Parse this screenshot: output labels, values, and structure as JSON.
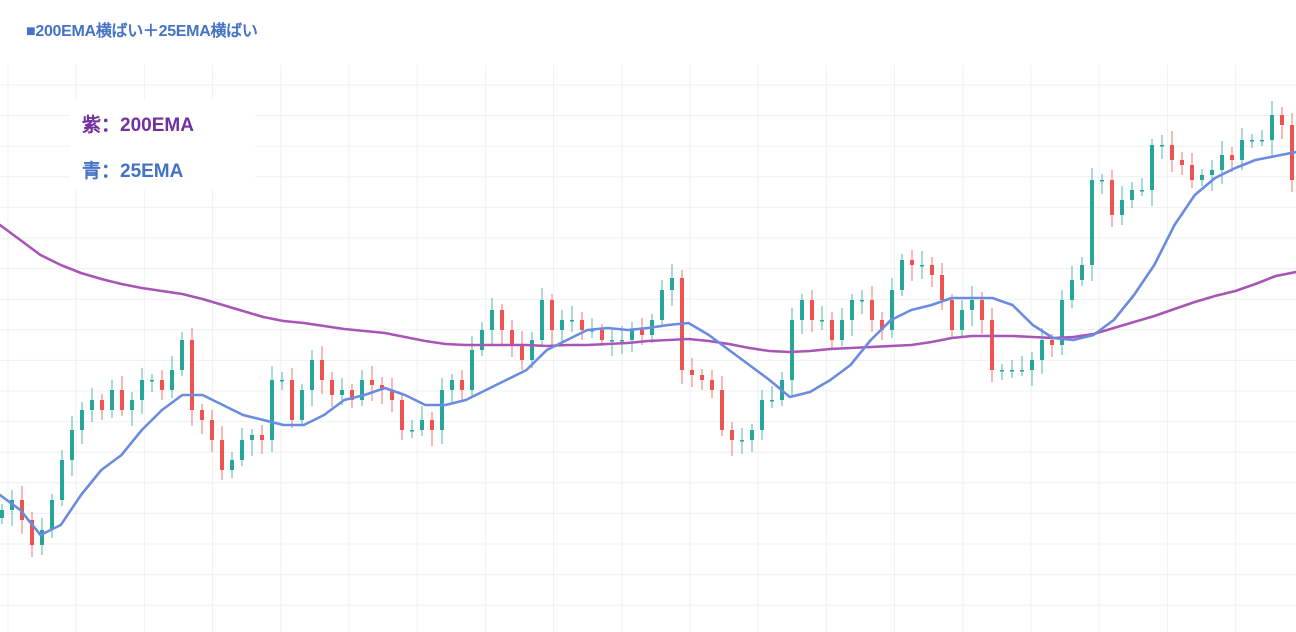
{
  "title": "■200EMA横ばい＋25EMA横ばい",
  "legend": {
    "ema200_label": "紫：200EMA",
    "ema25_label": "青：25EMA"
  },
  "colors": {
    "title": "#4472c4",
    "ema200": "#a855b5",
    "ema25": "#6b8be0",
    "up": "#26a69a",
    "down": "#ef5350",
    "grid": "#f0f0f0"
  },
  "chart_data": {
    "type": "line",
    "subtype": "candlestick-with-ema",
    "title": "■200EMA横ばい＋25EMA横ばい",
    "grid": true,
    "ylim": [
      34,
      316
    ],
    "closes": [
      95,
      100,
      90,
      77.5,
      85,
      100,
      120,
      135,
      145,
      150,
      145,
      155,
      145,
      150,
      160,
      160,
      155,
      165,
      180,
      145,
      140,
      130,
      115,
      120,
      130,
      132.5,
      130,
      160,
      160,
      140,
      155,
      170,
      160,
      152.5,
      155,
      150,
      160,
      157.5,
      155,
      150,
      135,
      135,
      140,
      135,
      155,
      160,
      155,
      175,
      185,
      195,
      185,
      177.5,
      170,
      180,
      200,
      185,
      190,
      190,
      185,
      185,
      180,
      180,
      180,
      185,
      182.5,
      190,
      205,
      211,
      165,
      162.5,
      160,
      155,
      135,
      130,
      130,
      135,
      150,
      150,
      160,
      190,
      200,
      190,
      190,
      180,
      190,
      200,
      200,
      190,
      185,
      205,
      220,
      217.5,
      217.5,
      212.5,
      200,
      185,
      195,
      200,
      190,
      165,
      165,
      165,
      165,
      170,
      180,
      177.5,
      200,
      210,
      217.5,
      260,
      260,
      242.5,
      250,
      255,
      255,
      277.5,
      277.5,
      270,
      267.5,
      260,
      262.5,
      265,
      272.5,
      270,
      280,
      280,
      280,
      292.5,
      287.5,
      260
    ],
    "series": [
      {
        "name": "200EMA",
        "values": [
          237.5,
          230,
          222.5,
          217.5,
          213.5,
          210.5,
          208,
          206,
          204.5,
          203,
          200.5,
          197.5,
          194.5,
          191.5,
          189.5,
          188.5,
          187,
          185.5,
          184.5,
          183.5,
          181.5,
          179.5,
          178,
          177.5,
          177.5,
          177.5,
          177.5,
          177,
          177.5,
          177.5,
          178,
          178.5,
          179.5,
          180,
          180.5,
          179.5,
          178,
          176,
          174.5,
          174,
          174.5,
          175.5,
          176,
          176.5,
          177,
          177.5,
          179,
          181,
          182,
          182,
          182,
          181.5,
          181,
          181.5,
          183,
          186,
          189,
          192,
          195.5,
          199,
          202,
          204.5,
          208,
          212,
          214
        ]
      },
      {
        "name": "25EMA",
        "values": [
          102.5,
          95,
          82.5,
          87.5,
          102.5,
          115,
          122.5,
          135,
          145,
          152.5,
          152.5,
          147.5,
          142.5,
          140,
          137.5,
          137.5,
          142.5,
          150,
          152.5,
          156,
          152.5,
          147.5,
          147.5,
          150,
          155,
          160,
          165,
          175,
          180,
          185,
          186,
          185,
          186,
          187.5,
          188.5,
          182.5,
          175,
          167.5,
          160,
          151.5,
          154,
          160,
          167.5,
          180,
          190,
          195,
          197.5,
          201,
          201,
          201,
          197.5,
          187.5,
          181,
          180,
          182.5,
          190,
          202.5,
          217.5,
          237.5,
          252.5,
          261,
          266,
          270,
          272,
          274
        ]
      }
    ]
  }
}
